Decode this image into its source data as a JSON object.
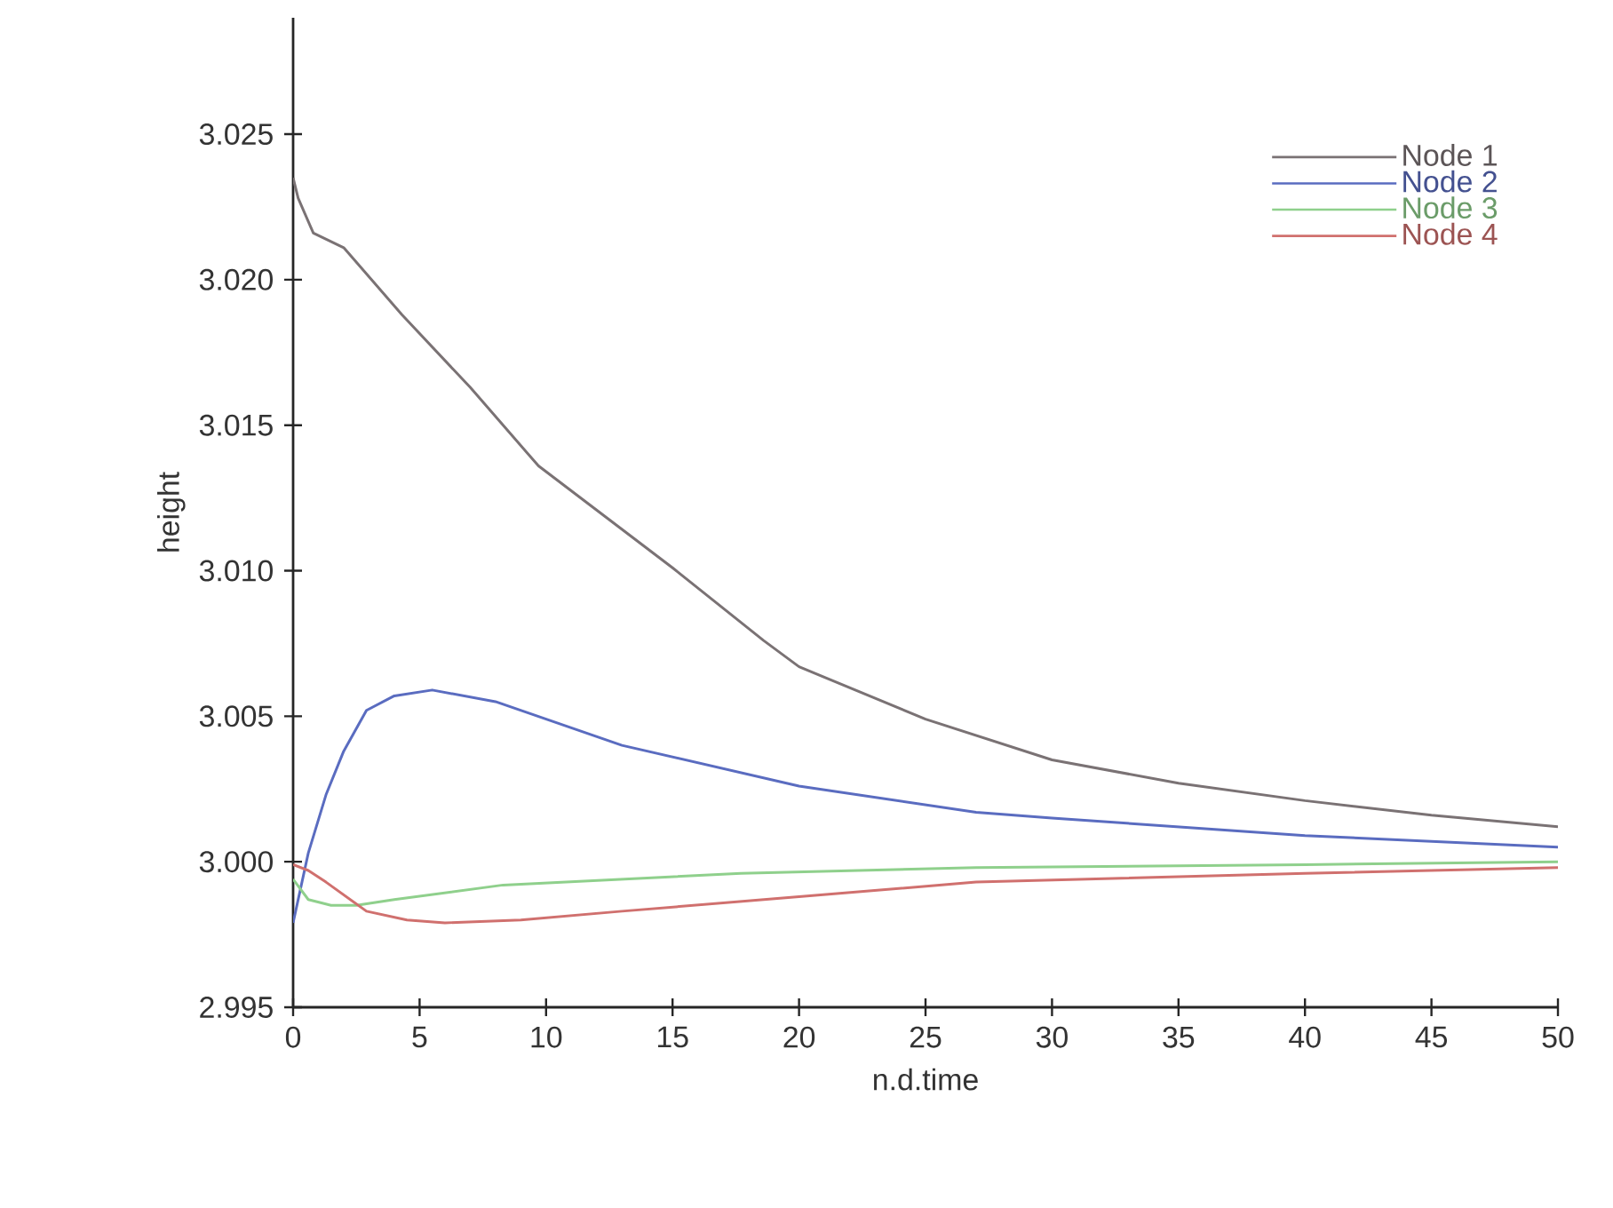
{
  "chart_data": {
    "type": "line",
    "xlabel": "n.d.time",
    "ylabel": "height",
    "xlim": [
      0,
      50
    ],
    "xticks": [
      0,
      5,
      10,
      15,
      20,
      25,
      30,
      35,
      40,
      45,
      50
    ],
    "ylim": [
      2.995,
      3.029
    ],
    "yticks": [
      {
        "value": 2.995,
        "label": "2.995"
      },
      {
        "value": 3.0,
        "label": "3.000"
      },
      {
        "value": 3.005,
        "label": "3.005"
      },
      {
        "value": 3.01,
        "label": "3.010"
      },
      {
        "value": 3.015,
        "label": "3.015"
      },
      {
        "value": 3.02,
        "label": "3.020"
      },
      {
        "value": 3.025,
        "label": "3.025"
      }
    ],
    "legend": "top right",
    "grid": false,
    "marker": "none",
    "line_style": "solid",
    "series": [
      {
        "name": "Node 1",
        "color": "#7a7274",
        "x": [
          0,
          0.2,
          0.8,
          2,
          4.3,
          7,
          9.7,
          15,
          18.6,
          20,
          25,
          30,
          35,
          40,
          45,
          50
        ],
        "values": [
          3.0235,
          3.0228,
          3.0216,
          3.0211,
          3.0188,
          3.0163,
          3.0136,
          3.0101,
          3.0076,
          3.0067,
          3.0049,
          3.0035,
          3.0027,
          3.0021,
          3.0016,
          3.0012
        ]
      },
      {
        "name": "Node 2",
        "color": "#5a6cc0",
        "x": [
          0,
          0.6,
          1.3,
          2,
          2.9,
          4,
          5.5,
          8,
          13,
          20,
          27,
          30,
          40,
          50
        ],
        "values": [
          2.9979,
          3.0003,
          3.0023,
          3.0038,
          3.0052,
          3.0057,
          3.0059,
          3.0055,
          3.004,
          3.0026,
          3.0017,
          3.0015,
          3.0009,
          3.0005
        ]
      },
      {
        "name": "Node 3",
        "color": "#8fd08c",
        "x": [
          0,
          0.6,
          1.5,
          2.5,
          4,
          8.3,
          17.7,
          27,
          40,
          50
        ],
        "values": [
          2.9994,
          2.9987,
          2.9985,
          2.9985,
          2.9987,
          2.9992,
          2.9996,
          2.9998,
          2.9999,
          3.0
        ]
      },
      {
        "name": "Node 4",
        "color": "#d0706e",
        "x": [
          0,
          0.6,
          1.3,
          2.9,
          4.5,
          6,
          9,
          13,
          20,
          27,
          40,
          50
        ],
        "values": [
          2.9999,
          2.9997,
          2.9993,
          2.9983,
          2.998,
          2.9979,
          2.998,
          2.9983,
          2.9988,
          2.9993,
          2.9996,
          2.9998
        ]
      }
    ]
  }
}
